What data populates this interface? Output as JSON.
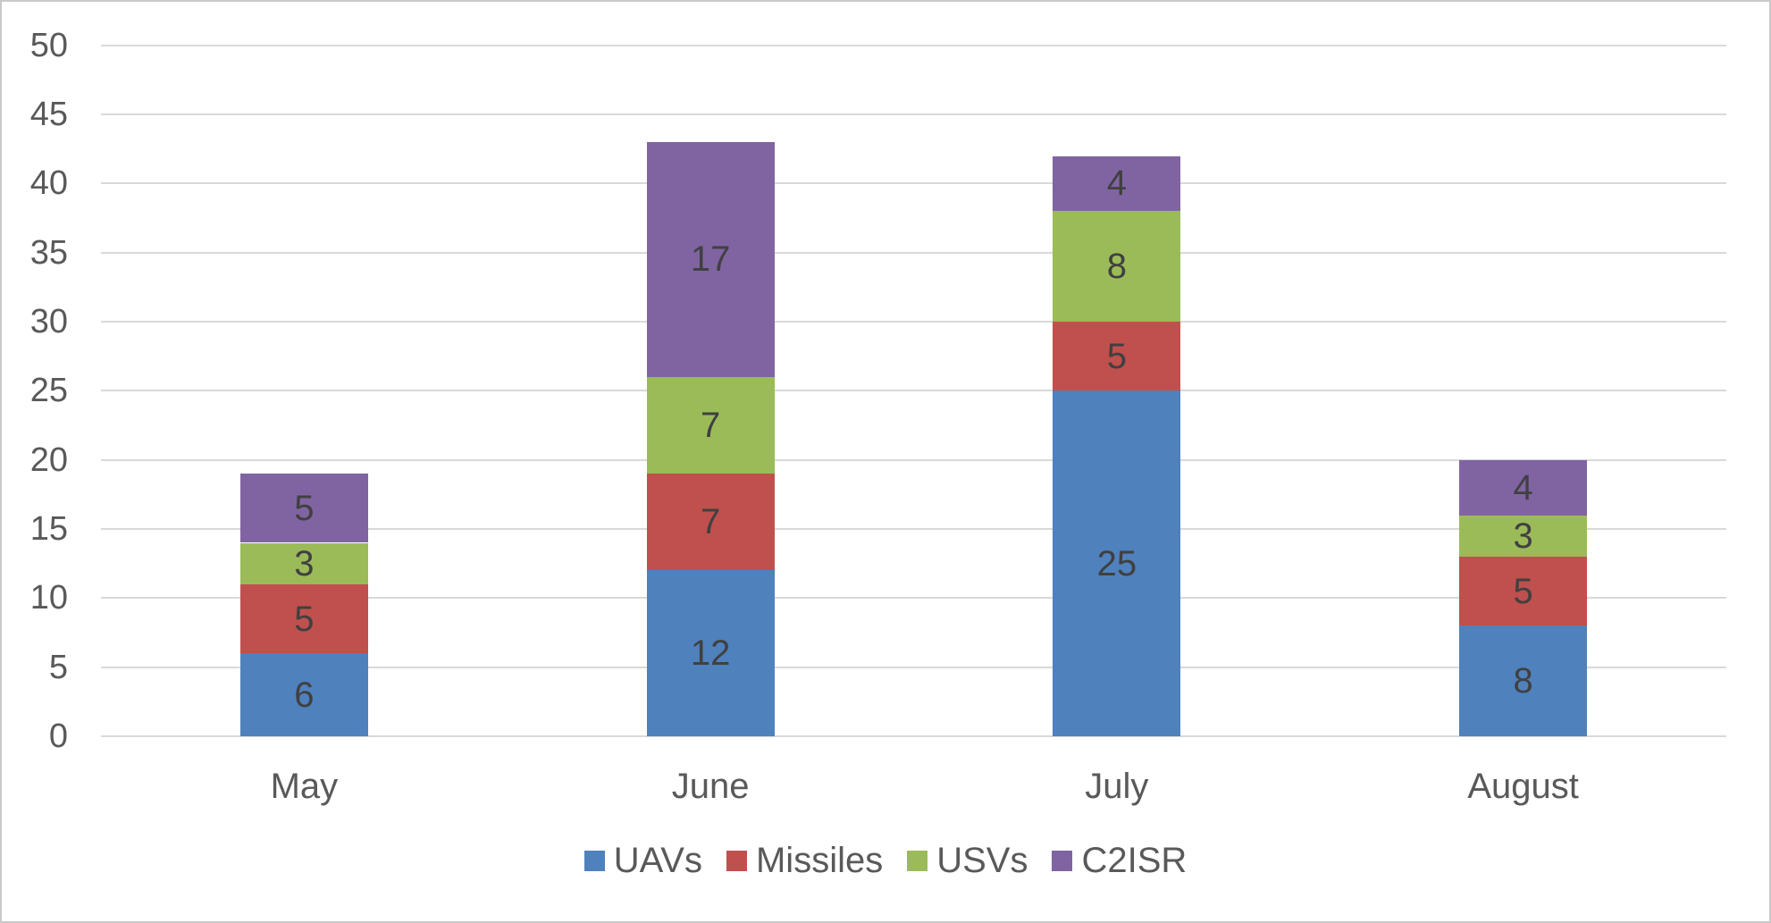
{
  "chart_data": {
    "type": "bar",
    "stacked": true,
    "title": "",
    "xlabel": "",
    "ylabel": "",
    "categories": [
      "May",
      "June",
      "July",
      "August"
    ],
    "series": [
      {
        "name": "UAVs",
        "color": "#4F81BD",
        "values": [
          6,
          12,
          25,
          8
        ]
      },
      {
        "name": "Missiles",
        "color": "#C0504D",
        "values": [
          5,
          7,
          5,
          5
        ]
      },
      {
        "name": "USVs",
        "color": "#9BBB59",
        "values": [
          3,
          7,
          8,
          3
        ]
      },
      {
        "name": "C2ISR",
        "color": "#8064A2",
        "values": [
          5,
          17,
          4,
          4
        ]
      }
    ],
    "stack_totals": [
      19,
      43,
      42,
      20
    ],
    "ylim": [
      0,
      50
    ],
    "ytick_step": 5,
    "yticks": [
      0,
      5,
      10,
      15,
      20,
      25,
      30,
      35,
      40,
      45,
      50
    ],
    "grid": true,
    "data_labels": true,
    "legend_position": "bottom"
  },
  "colors": {
    "gridline": "#D9D9D9",
    "axis_label_text": "#595959",
    "data_label_text": "#404040",
    "legend_text": "#595959",
    "chart_border": "#C9C9C9",
    "background": "#FFFFFF"
  }
}
